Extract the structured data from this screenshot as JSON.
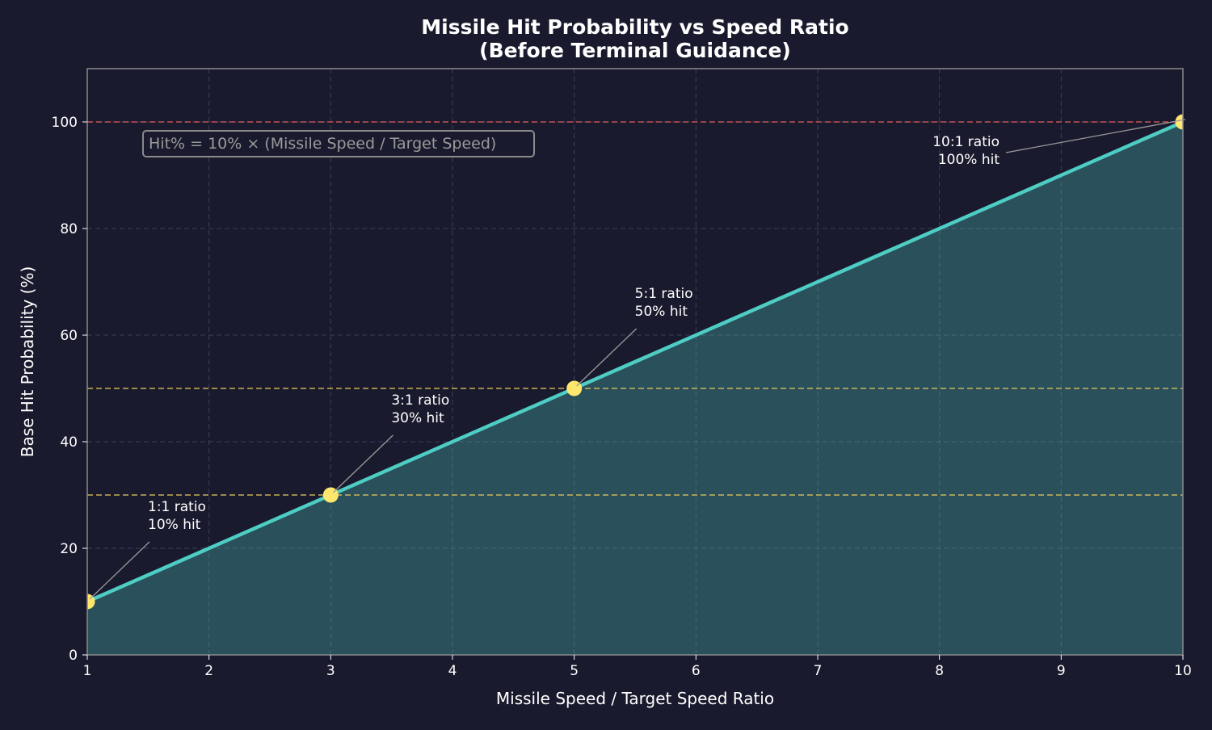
{
  "chart_data": {
    "type": "line",
    "title": "Missile Hit Probability vs Speed Ratio",
    "subtitle": "(Before Terminal Guidance)",
    "xlabel": "Missile Speed / Target Speed Ratio",
    "ylabel": "Base Hit Probability (%)",
    "xlim": [
      1,
      10
    ],
    "ylim": [
      0,
      110
    ],
    "xticks": [
      1,
      2,
      3,
      4,
      5,
      6,
      7,
      8,
      9,
      10
    ],
    "yticks": [
      0,
      20,
      40,
      60,
      80,
      100
    ],
    "grid": true,
    "series": [
      {
        "x": [
          1,
          2,
          3,
          4,
          5,
          6,
          7,
          8,
          9,
          10
        ],
        "y": [
          10,
          20,
          30,
          40,
          50,
          60,
          70,
          80,
          90,
          100
        ],
        "color": "#4ecdc4",
        "fill": true
      }
    ],
    "markers": {
      "x": [
        1,
        3,
        5,
        10
      ],
      "y": [
        10,
        30,
        50,
        100
      ],
      "color": "#ffe66d"
    },
    "hlines": [
      {
        "y": 100,
        "color": "#e05a5a"
      },
      {
        "y": 50,
        "color": "#e6c85a"
      },
      {
        "y": 30,
        "color": "#e6c85a"
      }
    ],
    "annotations": [
      {
        "lines": [
          "1:1 ratio",
          "10% hit"
        ],
        "x": 1,
        "y": 10
      },
      {
        "lines": [
          "3:1 ratio",
          "30% hit"
        ],
        "x": 3,
        "y": 30
      },
      {
        "lines": [
          "5:1 ratio",
          "50% hit"
        ],
        "x": 5,
        "y": 50
      },
      {
        "lines": [
          "10:1 ratio",
          "100% hit"
        ],
        "x": 10,
        "y": 100
      }
    ],
    "formula": "Hit% = 10% × (Missile Speed / Target Speed)"
  }
}
